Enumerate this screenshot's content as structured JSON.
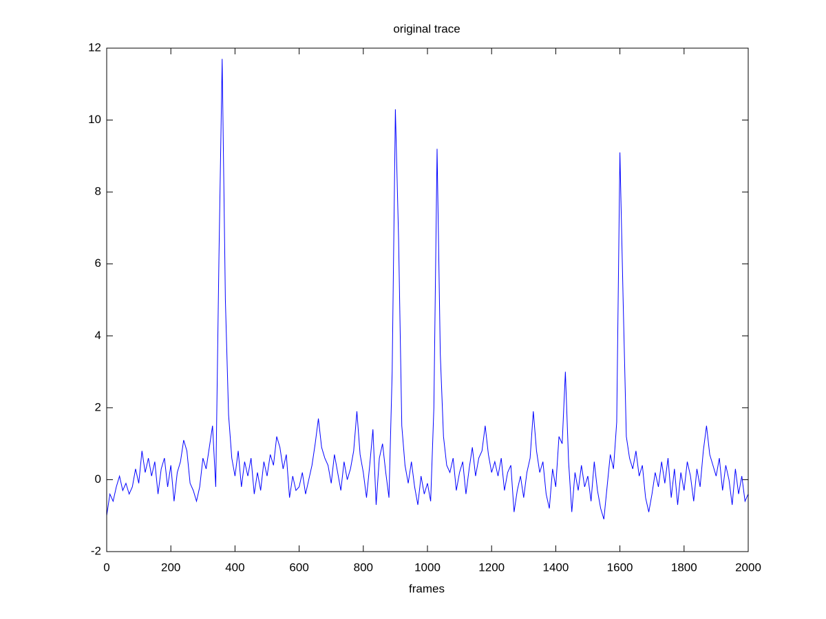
{
  "chart_data": {
    "type": "line",
    "title": "original trace",
    "xlabel": "frames",
    "x": [
      0,
      10,
      20,
      30,
      40,
      50,
      60,
      70,
      80,
      90,
      100,
      110,
      120,
      130,
      140,
      150,
      160,
      170,
      180,
      190,
      200,
      210,
      220,
      230,
      240,
      250,
      260,
      270,
      280,
      290,
      300,
      310,
      320,
      330,
      340,
      350,
      360,
      370,
      380,
      390,
      400,
      410,
      420,
      430,
      440,
      450,
      460,
      470,
      480,
      490,
      500,
      510,
      520,
      530,
      540,
      550,
      560,
      570,
      580,
      590,
      600,
      610,
      620,
      630,
      640,
      650,
      660,
      670,
      680,
      690,
      700,
      710,
      720,
      730,
      740,
      750,
      760,
      770,
      780,
      790,
      800,
      810,
      820,
      830,
      840,
      850,
      860,
      870,
      880,
      890,
      900,
      910,
      920,
      930,
      940,
      950,
      960,
      970,
      980,
      990,
      1000,
      1010,
      1020,
      1030,
      1040,
      1050,
      1060,
      1070,
      1080,
      1090,
      1100,
      1110,
      1120,
      1130,
      1140,
      1150,
      1160,
      1170,
      1180,
      1190,
      1200,
      1210,
      1220,
      1230,
      1240,
      1250,
      1260,
      1270,
      1280,
      1290,
      1300,
      1310,
      1320,
      1330,
      1340,
      1350,
      1360,
      1370,
      1380,
      1390,
      1400,
      1410,
      1420,
      1430,
      1440,
      1450,
      1460,
      1470,
      1480,
      1490,
      1500,
      1510,
      1520,
      1530,
      1540,
      1550,
      1560,
      1570,
      1580,
      1590,
      1600,
      1610,
      1620,
      1630,
      1640,
      1650,
      1660,
      1670,
      1680,
      1690,
      1700,
      1710,
      1720,
      1730,
      1740,
      1750,
      1760,
      1770,
      1780,
      1790,
      1800,
      1810,
      1820,
      1830,
      1840,
      1850,
      1860,
      1870,
      1880,
      1890,
      1900,
      1910,
      1920,
      1930,
      1940,
      1950,
      1960,
      1970,
      1980,
      1990,
      2000
    ],
    "series": [
      {
        "color": "#0000ff",
        "values": [
          -1.0,
          -0.4,
          -0.6,
          -0.2,
          0.1,
          -0.3,
          -0.1,
          -0.4,
          -0.2,
          0.3,
          -0.1,
          0.8,
          0.2,
          0.6,
          0.1,
          0.5,
          -0.4,
          0.3,
          0.6,
          -0.2,
          0.4,
          -0.6,
          0.2,
          0.5,
          1.1,
          0.8,
          -0.1,
          -0.3,
          -0.6,
          -0.2,
          0.6,
          0.3,
          0.9,
          1.5,
          -0.2,
          6.2,
          11.7,
          5.0,
          1.8,
          0.6,
          0.1,
          0.8,
          -0.2,
          0.5,
          0.1,
          0.6,
          -0.4,
          0.2,
          -0.3,
          0.5,
          0.1,
          0.7,
          0.4,
          1.2,
          0.9,
          0.3,
          0.7,
          -0.5,
          0.1,
          -0.3,
          -0.2,
          0.2,
          -0.4,
          0.0,
          0.4,
          1.0,
          1.7,
          0.9,
          0.6,
          0.4,
          -0.1,
          0.7,
          0.2,
          -0.3,
          0.5,
          0.0,
          0.3,
          0.8,
          1.9,
          0.7,
          0.2,
          -0.5,
          0.4,
          1.4,
          -0.7,
          0.6,
          1.0,
          0.2,
          -0.5,
          3.0,
          10.3,
          6.7,
          1.5,
          0.4,
          -0.1,
          0.5,
          -0.2,
          -0.7,
          0.1,
          -0.4,
          -0.1,
          -0.6,
          2.0,
          9.2,
          3.5,
          1.2,
          0.4,
          0.2,
          0.6,
          -0.3,
          0.2,
          0.5,
          -0.4,
          0.3,
          0.9,
          0.1,
          0.6,
          0.8,
          1.5,
          0.7,
          0.2,
          0.5,
          0.1,
          0.6,
          -0.3,
          0.2,
          0.4,
          -0.9,
          -0.3,
          0.1,
          -0.5,
          0.2,
          0.6,
          1.9,
          0.8,
          0.2,
          0.5,
          -0.4,
          -0.8,
          0.3,
          -0.2,
          1.2,
          1.0,
          3.0,
          0.5,
          -0.9,
          0.2,
          -0.3,
          0.4,
          -0.2,
          0.1,
          -0.6,
          0.5,
          -0.3,
          -0.8,
          -1.1,
          -0.2,
          0.7,
          0.3,
          1.6,
          9.1,
          5.0,
          1.2,
          0.6,
          0.3,
          0.8,
          0.1,
          0.4,
          -0.5,
          -0.9,
          -0.4,
          0.2,
          -0.2,
          0.5,
          -0.1,
          0.6,
          -0.5,
          0.3,
          -0.7,
          0.2,
          -0.3,
          0.5,
          0.1,
          -0.6,
          0.3,
          -0.2,
          0.8,
          1.5,
          0.7,
          0.4,
          0.1,
          0.6,
          -0.3,
          0.4,
          0.0,
          -0.7,
          0.3,
          -0.4,
          0.1,
          -0.6,
          -0.4
        ]
      }
    ],
    "xlim": [
      0,
      2000
    ],
    "xticks": [
      0,
      200,
      400,
      600,
      800,
      1000,
      1200,
      1400,
      1600,
      1800,
      2000
    ],
    "ylim": [
      -2,
      12
    ],
    "yticks": [
      -2,
      0,
      2,
      4,
      6,
      8,
      10,
      12
    ]
  }
}
